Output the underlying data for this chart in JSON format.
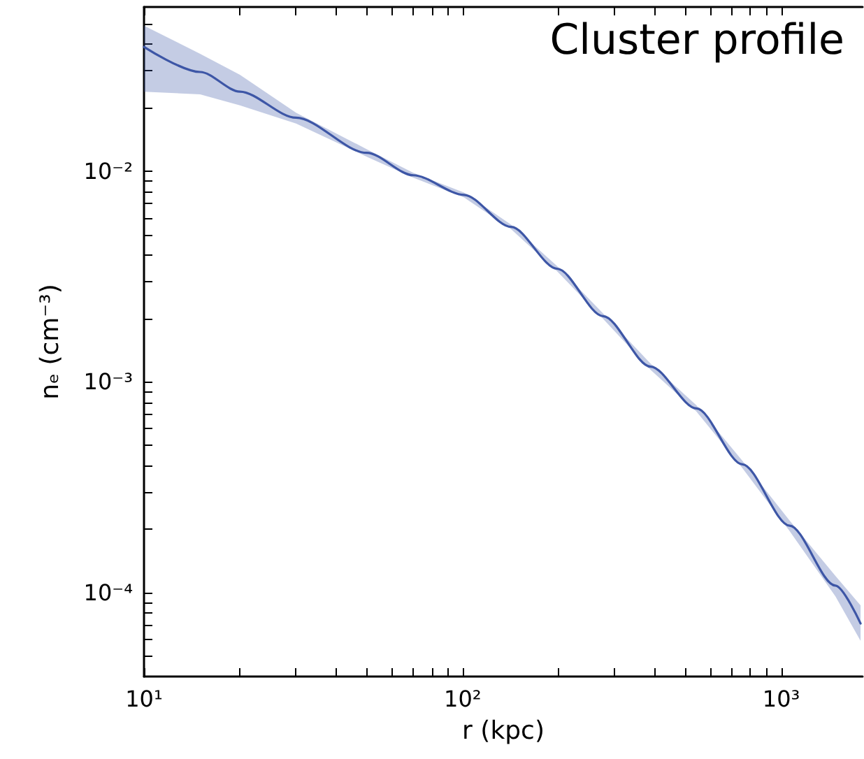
{
  "chart_data": {
    "type": "line",
    "xlabel": "r (kpc)",
    "ylabel": "nₑ (cm⁻³)",
    "annotations": [
      "Cluster profile"
    ],
    "log": "xy",
    "grid": false,
    "marker": "none",
    "line_style": "solid",
    "xlim": [
      10,
      1800
    ],
    "ylim": [
      4e-05,
      0.06
    ],
    "xticks": [
      {
        "value": 10,
        "label": "10¹"
      },
      {
        "value": 20,
        "label": null
      },
      {
        "value": 30,
        "label": null
      },
      {
        "value": 40,
        "label": null
      },
      {
        "value": 50,
        "label": null
      },
      {
        "value": 60,
        "label": null
      },
      {
        "value": 70,
        "label": null
      },
      {
        "value": 80,
        "label": null
      },
      {
        "value": 90,
        "label": null
      },
      {
        "value": 100,
        "label": "10²"
      },
      {
        "value": 200,
        "label": null
      },
      {
        "value": 300,
        "label": null
      },
      {
        "value": 400,
        "label": null
      },
      {
        "value": 500,
        "label": null
      },
      {
        "value": 600,
        "label": null
      },
      {
        "value": 700,
        "label": null
      },
      {
        "value": 800,
        "label": null
      },
      {
        "value": 900,
        "label": null
      },
      {
        "value": 1000,
        "label": "10³"
      }
    ],
    "yticks": [
      {
        "value": 5e-05,
        "label": null
      },
      {
        "value": 6e-05,
        "label": null
      },
      {
        "value": 7e-05,
        "label": null
      },
      {
        "value": 8e-05,
        "label": null
      },
      {
        "value": 9e-05,
        "label": null
      },
      {
        "value": 0.0001,
        "label": "10⁻⁴"
      },
      {
        "value": 0.0002,
        "label": null
      },
      {
        "value": 0.0003,
        "label": null
      },
      {
        "value": 0.0004,
        "label": null
      },
      {
        "value": 0.0005,
        "label": null
      },
      {
        "value": 0.0006,
        "label": null
      },
      {
        "value": 0.0007,
        "label": null
      },
      {
        "value": 0.0008,
        "label": null
      },
      {
        "value": 0.0009,
        "label": null
      },
      {
        "value": 0.001,
        "label": "10⁻³"
      },
      {
        "value": 0.002,
        "label": null
      },
      {
        "value": 0.003,
        "label": null
      },
      {
        "value": 0.004,
        "label": null
      },
      {
        "value": 0.005,
        "label": null
      },
      {
        "value": 0.006,
        "label": null
      },
      {
        "value": 0.007,
        "label": null
      },
      {
        "value": 0.008,
        "label": null
      },
      {
        "value": 0.009,
        "label": null
      },
      {
        "value": 0.01,
        "label": "10⁻²"
      },
      {
        "value": 0.02,
        "label": null
      },
      {
        "value": 0.03,
        "label": null
      },
      {
        "value": 0.04,
        "label": null
      },
      {
        "value": 0.05,
        "label": null
      }
    ],
    "series": [
      {
        "color": "#3d56a6",
        "x": [
          10,
          15,
          20,
          30,
          50,
          70,
          101,
          142,
          198,
          276,
          389,
          542,
          755,
          1062,
          1479,
          1774
        ],
        "values": [
          0.0388,
          0.0295,
          0.0238,
          0.0179,
          0.0122,
          0.00955,
          0.00771,
          0.00543,
          0.00344,
          0.00205,
          0.00118,
          0.000748,
          0.000406,
          0.000208,
          0.000108,
          7.14e-05
        ],
        "lower": [
          0.0238,
          0.0231,
          0.0205,
          0.0168,
          0.0117,
          0.0093,
          0.0075,
          0.0053,
          0.00334,
          0.00199,
          0.00114,
          0.000722,
          0.00039,
          0.000196,
          9.6e-05,
          5.9e-05
        ],
        "upper": [
          0.0489,
          0.036,
          0.0286,
          0.0189,
          0.0127,
          0.0098,
          0.0079,
          0.00556,
          0.00354,
          0.00211,
          0.00122,
          0.000774,
          0.000422,
          0.00022,
          0.00012,
          8.7e-05
        ]
      }
    ]
  }
}
